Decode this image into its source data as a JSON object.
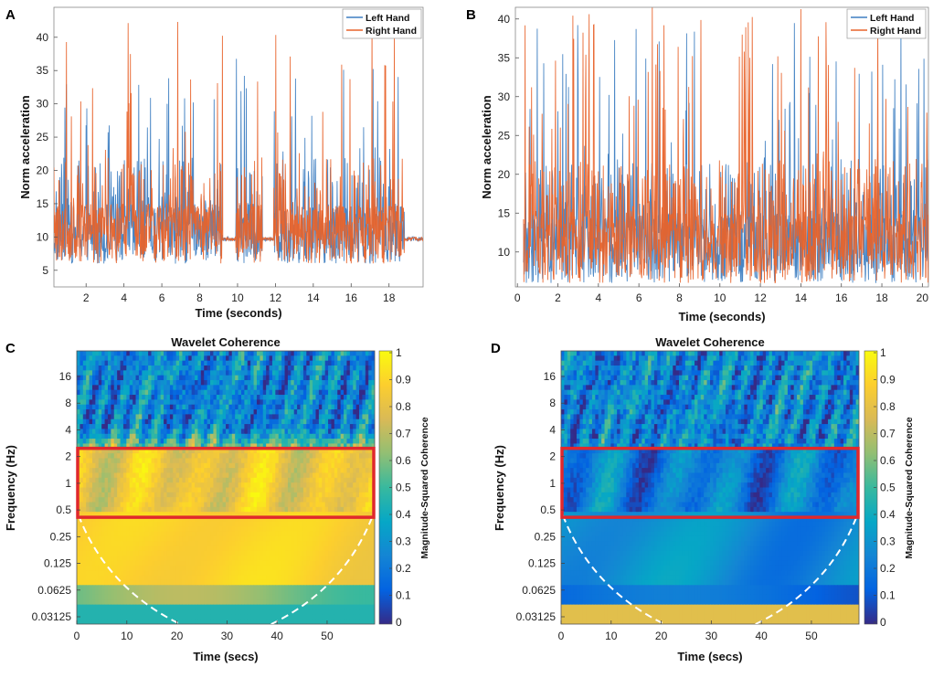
{
  "chart_data": [
    {
      "panel": "A",
      "type": "line",
      "xlabel": "Time (seconds)",
      "ylabel": "Norm acceleration",
      "xlim": [
        0.3,
        19.8
      ],
      "ylim": [
        2.5,
        44.5
      ],
      "xticks": [
        2,
        4,
        6,
        8,
        10,
        12,
        14,
        16,
        18
      ],
      "yticks": [
        5,
        10,
        15,
        20,
        25,
        30,
        35,
        40
      ],
      "legend_position": "top-right",
      "series": [
        {
          "name": "Left Hand",
          "color": "#3f7fc2",
          "baseline": 11,
          "peak": 37,
          "sampling_hz": 50
        },
        {
          "name": "Right Hand",
          "color": "#e8632b",
          "baseline": 11,
          "peak": 43.5,
          "sampling_hz": 50
        }
      ],
      "quiet_segments": [
        [
          9.2,
          9.9
        ],
        [
          11.3,
          11.9
        ],
        [
          18.8,
          19.8
        ]
      ]
    },
    {
      "panel": "B",
      "type": "line",
      "xlabel": "Time (seconds)",
      "ylabel": "Norm acceleration",
      "xlim": [
        -0.1,
        20.3
      ],
      "ylim": [
        5.5,
        41.5
      ],
      "xticks": [
        0,
        2,
        4,
        6,
        8,
        10,
        12,
        14,
        16,
        18,
        20
      ],
      "yticks": [
        10,
        15,
        20,
        25,
        30,
        35,
        40
      ],
      "legend_position": "top-right",
      "series": [
        {
          "name": "Left Hand",
          "color": "#3f7fc2",
          "baseline": 11,
          "peak": 40,
          "sampling_hz": 50
        },
        {
          "name": "Right Hand",
          "color": "#e8632b",
          "baseline": 11,
          "peak": 41.5,
          "sampling_hz": 50
        }
      ]
    },
    {
      "panel": "C",
      "type": "heatmap",
      "title": "Wavelet Coherence",
      "xlabel": "Time (secs)",
      "ylabel": "Frequency (Hz)",
      "colorbar_label": "Magnitude-Squared Coherence",
      "xlim": [
        0,
        59.5
      ],
      "xticks": [
        0,
        10,
        20,
        30,
        40,
        50
      ],
      "yticks": [
        "16",
        "8",
        "4",
        "2",
        "1",
        "0.5",
        "0.25",
        "0.125",
        "0.0625",
        "0.03125"
      ],
      "colorbar_ticks": [
        "1",
        "0.9",
        "0.8",
        "0.7",
        "0.6",
        "0.5",
        "0.4",
        "0.3",
        "0.2",
        "0.1",
        "0"
      ],
      "highlight_band_hz": [
        0.5,
        2.5
      ],
      "description": "high coherence"
    },
    {
      "panel": "D",
      "type": "heatmap",
      "title": "Wavelet Coherence",
      "xlabel": "Time (secs)",
      "ylabel": "Frequency (Hz)",
      "colorbar_label": "Magnitude-Squared Coherence",
      "xlim": [
        0,
        59.5
      ],
      "xticks": [
        0,
        10,
        20,
        30,
        40,
        50
      ],
      "yticks": [
        "16",
        "8",
        "4",
        "2",
        "1",
        "0.5",
        "0.25",
        "0.125",
        "0.0625",
        "0.03125"
      ],
      "colorbar_ticks": [
        "1",
        "0.9",
        "0.8",
        "0.7",
        "0.6",
        "0.5",
        "0.4",
        "0.3",
        "0.2",
        "0.1",
        "0"
      ],
      "highlight_band_hz": [
        0.5,
        2.5
      ],
      "description": "low coherence"
    }
  ],
  "colors": {
    "left": "#3f7fc2",
    "right": "#e8632b",
    "highlight": "#e0282c",
    "coi": "#ffffff"
  }
}
